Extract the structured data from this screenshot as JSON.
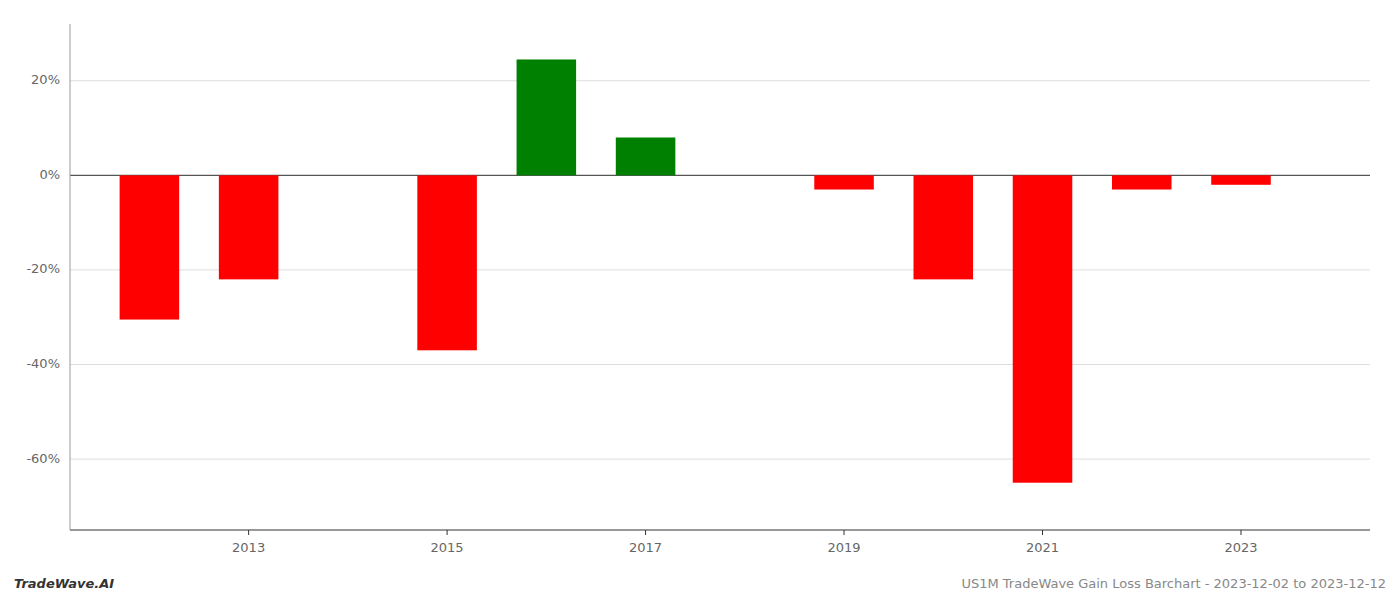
{
  "chart_data": {
    "type": "bar",
    "x": [
      2012,
      2013,
      2015,
      2016,
      2017,
      2019,
      2020,
      2021,
      2022,
      2023
    ],
    "values": [
      -30.5,
      -22.0,
      -37.0,
      24.5,
      8.0,
      -3.0,
      -22.0,
      -65.0,
      -3.0,
      -2.0
    ],
    "colors": [
      "red",
      "red",
      "red",
      "green",
      "green",
      "red",
      "red",
      "red",
      "red",
      "red"
    ],
    "xlim": [
      2011.2,
      2024.3
    ],
    "xticks": [
      2013,
      2015,
      2017,
      2019,
      2021,
      2023
    ],
    "ylim": [
      -75,
      32
    ],
    "yticks": [
      {
        "value": 20,
        "label": "20%"
      },
      {
        "value": 0,
        "label": "0%"
      },
      {
        "value": -20,
        "label": "-20%"
      },
      {
        "value": -40,
        "label": "-40%"
      },
      {
        "value": -60,
        "label": "-60%"
      }
    ],
    "grid": true,
    "annotations": [
      "TradeWave.AI",
      "US1M TradeWave Gain Loss Barchart - 2023-12-02 to 2023-12-12"
    ]
  }
}
